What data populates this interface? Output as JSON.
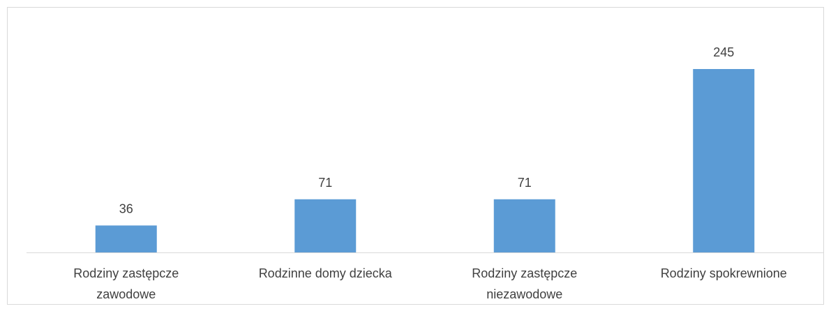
{
  "chart_data": {
    "type": "bar",
    "categories": [
      "Rodziny zastępcze zawodowe",
      "Rodzinne domy dziecka",
      "Rodziny zastępcze niezawodowe",
      "Rodziny spokrewnione"
    ],
    "values": [
      36,
      71,
      71,
      245
    ],
    "color": "#5b9bd5"
  }
}
